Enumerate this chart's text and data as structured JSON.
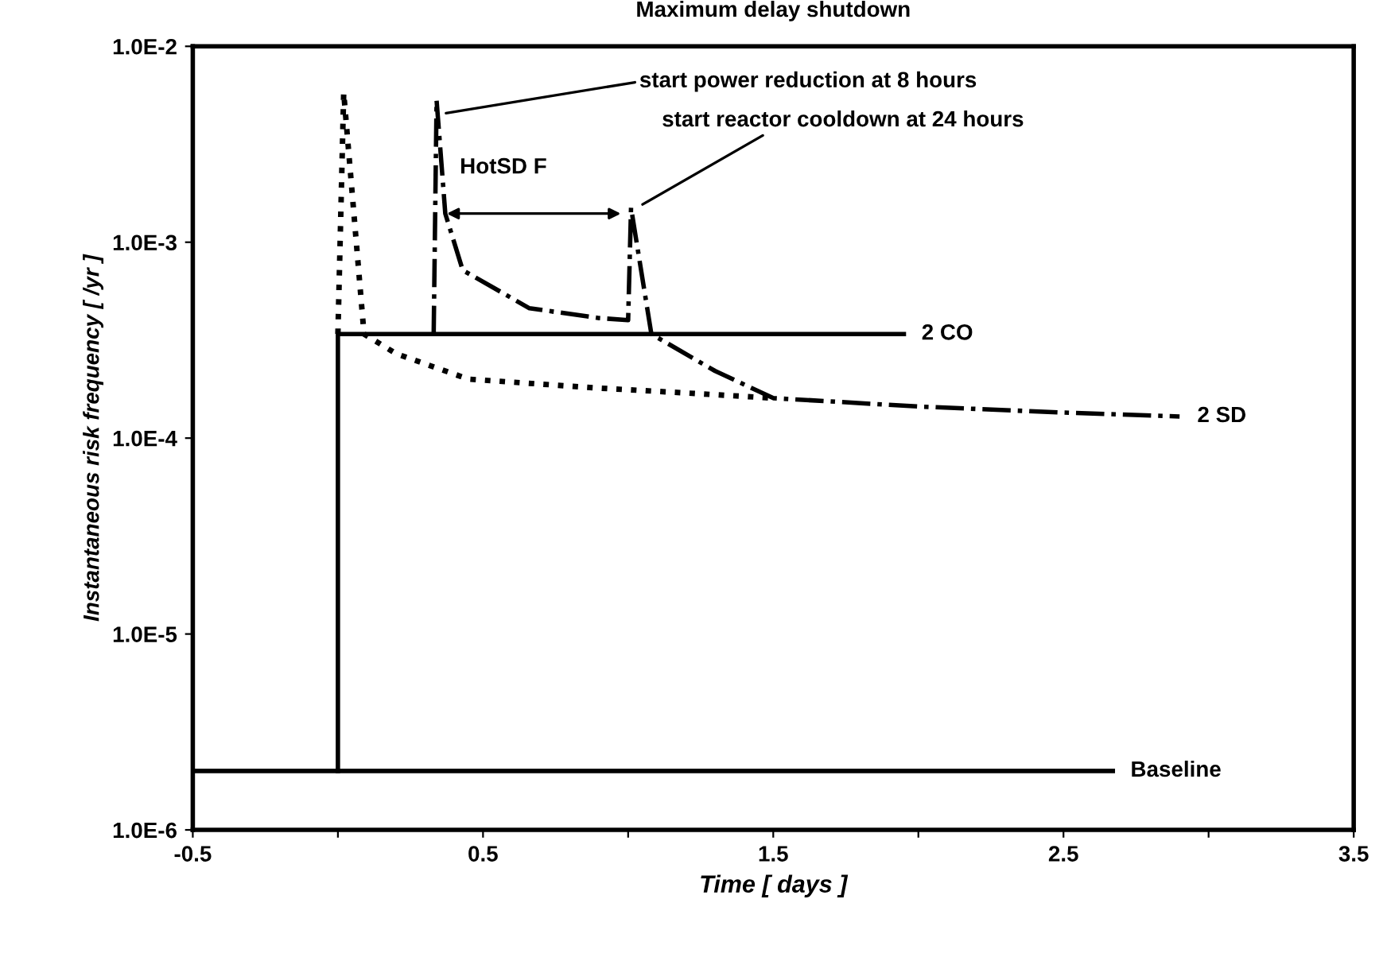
{
  "chart_data": {
    "type": "line",
    "xlabel": "Time [ days ]",
    "ylabel": "Instantaneous risk frequency [ /yr ]",
    "log": "y",
    "grid": false,
    "legend": false,
    "xlim": [
      -0.5,
      3.5
    ],
    "ylim": [
      1e-06,
      0.01
    ],
    "xticks": [
      -0.5,
      {
        "value": 0,
        "label": null
      },
      0.5,
      {
        "value": 1,
        "label": null
      },
      1.5,
      {
        "value": 2,
        "label": null
      },
      2.5,
      {
        "value": 3,
        "label": null
      },
      3.5
    ],
    "yticks": [
      {
        "value": 1e-06,
        "label": "1.0E-6"
      },
      {
        "value": 1e-05,
        "label": "1.0E-5"
      },
      {
        "value": 0.0001,
        "label": "1.0E-4"
      },
      {
        "value": 0.001,
        "label": "1.0E-3"
      },
      {
        "value": 0.01,
        "label": "1.0E-2"
      }
    ],
    "series": [
      {
        "name": "Baseline",
        "color": "#000000",
        "line_style": "solid",
        "x": [
          -0.5,
          2.67
        ],
        "values": [
          2e-06,
          2e-06
        ]
      },
      {
        "name": "2 CO",
        "color": "#000000",
        "line_style": "solid",
        "x": [
          0,
          0,
          1.95
        ],
        "values": [
          2e-06,
          0.00034,
          0.00034
        ]
      },
      {
        "color": "#000000",
        "line_style": "dotted",
        "x": [
          0,
          0.02,
          0.09,
          0.2,
          0.45,
          0.9,
          1.2,
          1.5
        ],
        "values": [
          0.00034,
          0.0058,
          0.00034,
          0.00027,
          0.0002,
          0.00018,
          0.00017,
          0.00016
        ]
      },
      {
        "name": "2 SD",
        "color": "#000000",
        "line_style": "dashdot",
        "x": [
          0.33,
          0.34,
          0.37,
          0.43,
          0.66,
          0.9,
          1.0,
          1.01,
          1.08,
          1.3,
          1.5,
          2.0,
          2.5,
          2.9
        ],
        "values": [
          0.00034,
          0.0053,
          0.0014,
          0.00072,
          0.00046,
          0.00041,
          0.0004,
          0.0015,
          0.00034,
          0.00022,
          0.00016,
          0.000145,
          0.000135,
          0.000129
        ]
      }
    ],
    "annotations": [
      "Maximum delay shutdown",
      {
        "text": "start power reduction at 8 hours",
        "x": 0.35,
        "y": 0.0045
      },
      {
        "text": "start reactor cooldown at 24 hours",
        "x": 1.03,
        "y": 0.0015
      },
      "HotSD F"
    ]
  }
}
